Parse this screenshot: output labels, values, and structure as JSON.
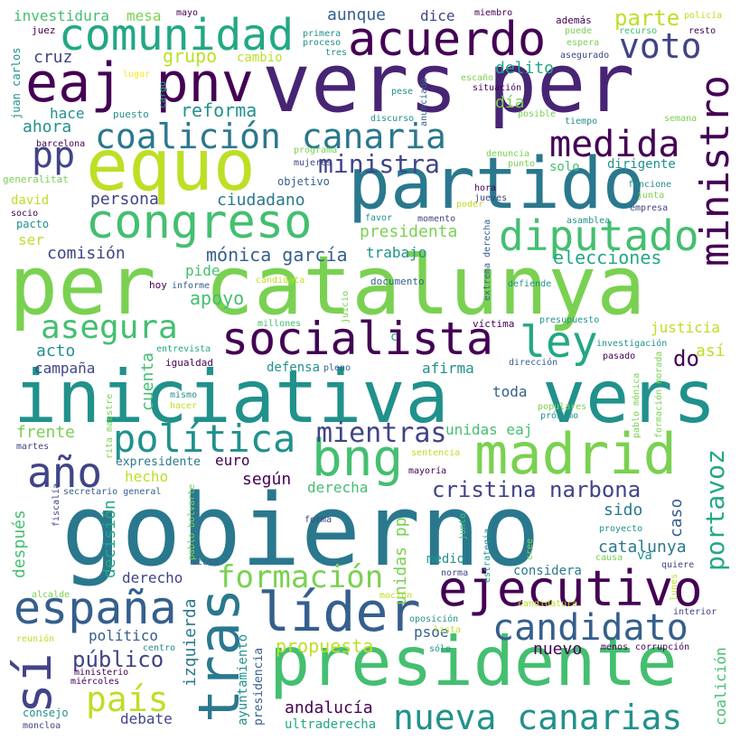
{
  "words": [
    {
      "text": "gobierno",
      "color": "#2a788e"
    },
    {
      "text": "per catalunya",
      "color": "#7ad151"
    },
    {
      "text": "iniciativa",
      "color": "#21918c"
    },
    {
      "text": "vers",
      "color": "#482475"
    },
    {
      "text": "per",
      "color": "#482475"
    },
    {
      "text": "vers",
      "color": "#21918c"
    },
    {
      "text": "presidente",
      "color": "#44bf70"
    },
    {
      "text": "equo",
      "color": "#bddf26"
    },
    {
      "text": "partido",
      "color": "#2a788e"
    },
    {
      "text": "eaj pnv",
      "color": "#440154"
    },
    {
      "text": "acuerdo",
      "color": "#440154"
    },
    {
      "text": "congreso",
      "color": "#44bf70"
    },
    {
      "text": "madrid",
      "color": "#7ad151"
    },
    {
      "text": "socialista",
      "color": "#440154"
    },
    {
      "text": "bng",
      "color": "#44bf70"
    },
    {
      "text": "ejecutivo",
      "color": "#440154"
    },
    {
      "text": "líder",
      "color": "#355f8d"
    },
    {
      "text": "tras",
      "color": "#2a788e"
    },
    {
      "text": "españa",
      "color": "#355f8d"
    },
    {
      "text": "comunidad",
      "color": "#22a884"
    },
    {
      "text": "coalición canaria",
      "color": "#2a788e"
    },
    {
      "text": "diputado",
      "color": "#44bf70"
    },
    {
      "text": "ministro",
      "color": "#440154"
    },
    {
      "text": "política",
      "color": "#21918c"
    },
    {
      "text": "candidato",
      "color": "#355f8d"
    },
    {
      "text": "nueva canarias",
      "color": "#21918c"
    },
    {
      "text": "año",
      "color": "#414487"
    },
    {
      "text": "sí",
      "color": "#414487"
    },
    {
      "text": "medida",
      "color": "#440154"
    },
    {
      "text": "voto",
      "color": "#414487"
    },
    {
      "text": "asegura",
      "color": "#44bf70"
    },
    {
      "text": "ley",
      "color": "#22a884"
    },
    {
      "text": "país",
      "color": "#bddf26"
    },
    {
      "text": "formación",
      "color": "#7ad151"
    },
    {
      "text": "pp",
      "color": "#414487"
    },
    {
      "text": "mientras",
      "color": "#414487"
    },
    {
      "text": "portavoz",
      "color": "#22a884"
    },
    {
      "text": "cristina narbona",
      "color": "#414487"
    },
    {
      "text": "ministra",
      "color": "#414487"
    },
    {
      "text": "público",
      "color": "#414487"
    },
    {
      "text": "parte",
      "color": "#bddf26"
    },
    {
      "text": "elecciones",
      "color": "#22a884"
    },
    {
      "text": "mónica garcía",
      "color": "#355f8d"
    },
    {
      "text": "presidenta",
      "color": "#7ad151"
    },
    {
      "text": "ciudadano",
      "color": "#2a788e"
    },
    {
      "text": "persona",
      "color": "#414487"
    },
    {
      "text": "comisión",
      "color": "#414487"
    },
    {
      "text": "trabajo",
      "color": "#21918c"
    },
    {
      "text": "apoyo",
      "color": "#44bf70"
    },
    {
      "text": "reforma",
      "color": "#21918c"
    },
    {
      "text": "grupo",
      "color": "#bddf26"
    },
    {
      "text": "cambio",
      "color": "#bddf26"
    },
    {
      "text": "aunque",
      "color": "#355f8d"
    },
    {
      "text": "dice",
      "color": "#414487"
    },
    {
      "text": "investidura",
      "color": "#44bf70"
    },
    {
      "text": "mesa",
      "color": "#7ad151"
    },
    {
      "text": "cruz",
      "color": "#414487"
    },
    {
      "text": "hace",
      "color": "#21918c"
    },
    {
      "text": "ahora",
      "color": "#21918c"
    },
    {
      "text": "delito",
      "color": "#22a884"
    },
    {
      "text": "día",
      "color": "#7ad151"
    },
    {
      "text": "solo",
      "color": "#44bf70"
    },
    {
      "text": "dirigente",
      "color": "#21918c"
    },
    {
      "text": "david",
      "color": "#bddf26"
    },
    {
      "text": "ser",
      "color": "#bddf26"
    },
    {
      "text": "pide",
      "color": "#44bf70"
    },
    {
      "text": "acto",
      "color": "#21918c"
    },
    {
      "text": "campaña",
      "color": "#414487"
    },
    {
      "text": "cuenta",
      "color": "#44bf70"
    },
    {
      "text": "defensa",
      "color": "#21918c"
    },
    {
      "text": "afirma",
      "color": "#21918c"
    },
    {
      "text": "toda",
      "color": "#355f8d"
    },
    {
      "text": "do",
      "color": "#440154"
    },
    {
      "text": "así",
      "color": "#bddf26"
    },
    {
      "text": "justicia",
      "color": "#bddf26"
    },
    {
      "text": "frente",
      "color": "#7ad151"
    },
    {
      "text": "hecho",
      "color": "#bddf26"
    },
    {
      "text": "según",
      "color": "#440154"
    },
    {
      "text": "euro",
      "color": "#440154"
    },
    {
      "text": "expresidente",
      "color": "#2a788e"
    },
    {
      "text": "unidas eaj",
      "color": "#44bf70"
    },
    {
      "text": "derecha",
      "color": "#44bf70"
    },
    {
      "text": "caso",
      "color": "#355f8d"
    },
    {
      "text": "sido",
      "color": "#2a788e"
    },
    {
      "text": "después",
      "color": "#44bf70"
    },
    {
      "text": "decisión",
      "color": "#22a884"
    },
    {
      "text": "derecho",
      "color": "#414487"
    },
    {
      "text": "catalunya",
      "color": "#2a788e"
    },
    {
      "text": "considera",
      "color": "#2a788e"
    },
    {
      "text": "unidas pp",
      "color": "#7ad151"
    },
    {
      "text": "izquierda",
      "color": "#2a788e"
    },
    {
      "text": "propuesta",
      "color": "#bddf26"
    },
    {
      "text": "psoe",
      "color": "#355f8d"
    },
    {
      "text": "nuevo",
      "color": "#440154"
    },
    {
      "text": "político",
      "color": "#355f8d"
    },
    {
      "text": "debate",
      "color": "#414487"
    },
    {
      "text": "andalucía",
      "color": "#440154"
    },
    {
      "text": "ultraderecha",
      "color": "#22a884"
    },
    {
      "text": "ayuntamiento",
      "color": "#21918c"
    },
    {
      "text": "presidencia",
      "color": "#355f8d"
    },
    {
      "text": "coalición",
      "color": "#44bf70"
    },
    {
      "text": "medio",
      "color": "#21918c"
    },
    {
      "text": "va",
      "color": "#21918c"
    },
    {
      "text": "juan carlos",
      "color": "#21918c"
    },
    {
      "text": "barcelona",
      "color": "#440154"
    },
    {
      "text": "generalitat",
      "color": "#7ad151"
    },
    {
      "text": "socio",
      "color": "#440154"
    },
    {
      "text": "pacto",
      "color": "#21918c"
    },
    {
      "text": "juez",
      "color": "#440154"
    },
    {
      "text": "mayo",
      "color": "#440154"
    },
    {
      "text": "primera",
      "color": "#21918c"
    },
    {
      "text": "proceso",
      "color": "#21918c"
    },
    {
      "text": "tres",
      "color": "#21918c"
    },
    {
      "text": "miembro",
      "color": "#440154"
    },
    {
      "text": "además",
      "color": "#440154"
    },
    {
      "text": "puede",
      "color": "#7ad151"
    },
    {
      "text": "espera",
      "color": "#7ad151"
    },
    {
      "text": "recurso",
      "color": "#44bf70"
    },
    {
      "text": "resto",
      "color": "#440154"
    },
    {
      "text": "policía",
      "color": "#bddf26"
    },
    {
      "text": "asegurado",
      "color": "#414487"
    },
    {
      "text": "lugar",
      "color": "#fde725"
    },
    {
      "text": "cargo",
      "color": "#22a884"
    },
    {
      "text": "puesto",
      "color": "#21918c"
    },
    {
      "text": "pese",
      "color": "#21918c"
    },
    {
      "text": "anunciado",
      "color": "#355f8d"
    },
    {
      "text": "escaño",
      "color": "#7ad151"
    },
    {
      "text": "situación",
      "color": "#440154"
    },
    {
      "text": "posible",
      "color": "#7ad151"
    },
    {
      "text": "semana",
      "color": "#7ad151"
    },
    {
      "text": "tiempo",
      "color": "#21918c"
    },
    {
      "text": "discurso",
      "color": "#21918c"
    },
    {
      "text": "denuncia",
      "color": "#7ad151"
    },
    {
      "text": "punto",
      "color": "#7ad151"
    },
    {
      "text": "programa",
      "color": "#7ad151"
    },
    {
      "text": "mujeres",
      "color": "#414487"
    },
    {
      "text": "objetivo",
      "color": "#355f8d"
    },
    {
      "text": "hora",
      "color": "#440154"
    },
    {
      "text": "jueves",
      "color": "#414487"
    },
    {
      "text": "funcione",
      "color": "#21918c"
    },
    {
      "text": "junta",
      "color": "#7ad151"
    },
    {
      "text": "empresa",
      "color": "#414487"
    },
    {
      "text": "favor",
      "color": "#21918c"
    },
    {
      "text": "momento",
      "color": "#414487"
    },
    {
      "text": "poder",
      "color": "#bddf26"
    },
    {
      "text": "extrema derecha",
      "color": "#355f8d"
    },
    {
      "text": "asamblea",
      "color": "#21918c"
    },
    {
      "text": "defiende",
      "color": "#21918c"
    },
    {
      "text": "hoy",
      "color": "#440154"
    },
    {
      "text": "informe",
      "color": "#355f8d"
    },
    {
      "text": "candidata",
      "color": "#bddf26"
    },
    {
      "text": "documento",
      "color": "#355f8d"
    },
    {
      "text": "juicio",
      "color": "#7ad151"
    },
    {
      "text": "millones",
      "color": "#44bf70"
    },
    {
      "text": "víctima",
      "color": "#440154"
    },
    {
      "text": "presupuesto",
      "color": "#21918c"
    },
    {
      "text": "entrevista",
      "color": "#22a884"
    },
    {
      "text": "c",
      "color": "#22a884"
    },
    {
      "text": "investigación",
      "color": "#21918c"
    },
    {
      "text": "igualdad",
      "color": "#440154"
    },
    {
      "text": "pleno",
      "color": "#355f8d"
    },
    {
      "text": "dirección",
      "color": "#355f8d"
    },
    {
      "text": "pasado",
      "color": "#440154"
    },
    {
      "text": "formación morada",
      "color": "#7ad151"
    },
    {
      "text": "mismo",
      "color": "#21918c"
    },
    {
      "text": "hacer",
      "color": "#bddf26"
    },
    {
      "text": "rita maestre",
      "color": "#7ad151"
    },
    {
      "text": "populares",
      "color": "#7ad151"
    },
    {
      "text": "próximo",
      "color": "#21918c"
    },
    {
      "text": "pablo mónica",
      "color": "#7ad151"
    },
    {
      "text": "martes",
      "color": "#414487"
    },
    {
      "text": "sentencia",
      "color": "#bddf26"
    },
    {
      "text": "mayoría",
      "color": "#440154"
    },
    {
      "text": "secretario general",
      "color": "#355f8d"
    },
    {
      "text": "fiscalía",
      "color": "#414487"
    },
    {
      "text": "pablo bolvarte",
      "color": "#7ad151"
    },
    {
      "text": "forma",
      "color": "#414487"
    },
    {
      "text": "junto",
      "color": "#44bf70"
    },
    {
      "text": "proyecto",
      "color": "#21918c"
    },
    {
      "text": "acusa",
      "color": "#355f8d"
    },
    {
      "text": "estrategia",
      "color": "#21918c"
    },
    {
      "text": "cree",
      "color": "#7ad151"
    },
    {
      "text": "causa",
      "color": "#7ad151"
    },
    {
      "text": "norma",
      "color": "#414487"
    },
    {
      "text": "quiere",
      "color": "#414487"
    },
    {
      "text": "alcalde",
      "color": "#7ad151"
    },
    {
      "text": "moción",
      "color": "#bddf26"
    },
    {
      "text": "lunes",
      "color": "#bddf26"
    },
    {
      "text": "candidatura",
      "color": "#bddf26"
    },
    {
      "text": "interior",
      "color": "#414487"
    },
    {
      "text": "oposición",
      "color": "#21918c"
    },
    {
      "text": "lista",
      "color": "#bddf26"
    },
    {
      "text": "reunión",
      "color": "#bddf26"
    },
    {
      "text": "centro",
      "color": "#21918c"
    },
    {
      "text": "sólo",
      "color": "#21918c"
    },
    {
      "text": "menos",
      "color": "#440154"
    },
    {
      "text": "corrupción",
      "color": "#440154"
    },
    {
      "text": "ministerio",
      "color": "#440154"
    },
    {
      "text": "miércoles",
      "color": "#440154"
    },
    {
      "text": "consejo",
      "color": "#21918c"
    },
    {
      "text": "moncloa",
      "color": "#414487"
    }
  ]
}
